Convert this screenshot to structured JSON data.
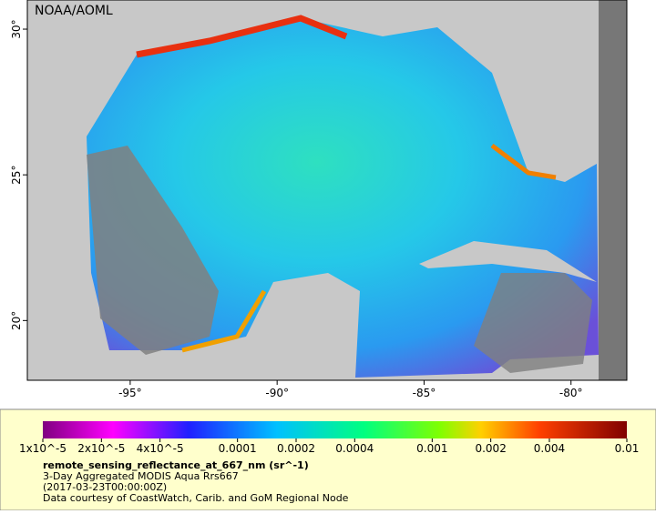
{
  "header": {
    "credit": "NOAA/AOML"
  },
  "map": {
    "xlim": [
      -98.5,
      -78.1
    ],
    "ylim": [
      17.95,
      31
    ],
    "xticks": [
      {
        "value": -95,
        "label": "-95°"
      },
      {
        "value": -90,
        "label": "-90°"
      },
      {
        "value": -85,
        "label": "-85°"
      },
      {
        "value": -80,
        "label": "-80°"
      }
    ],
    "yticks": [
      {
        "value": 20,
        "label": "20°"
      },
      {
        "value": 25,
        "label": "25°"
      },
      {
        "value": 30,
        "label": "30°"
      }
    ]
  },
  "colorbar": {
    "lim": [
      1e-05,
      0.01
    ],
    "log": true,
    "ticks": [
      {
        "value": 1e-05,
        "label": "1x10^-5"
      },
      {
        "value": 2e-05,
        "label": "2x10^-5"
      },
      {
        "value": 4e-05,
        "label": "4x10^-5"
      },
      {
        "value": 0.0001,
        "label": "0.0001"
      },
      {
        "value": 0.0002,
        "label": "0.0002"
      },
      {
        "value": 0.0004,
        "label": "0.0004"
      },
      {
        "value": 0.001,
        "label": "0.001"
      },
      {
        "value": 0.002,
        "label": "0.002"
      },
      {
        "value": 0.004,
        "label": "0.004"
      },
      {
        "value": 0.01,
        "label": "0.01"
      }
    ]
  },
  "caption": {
    "variable": "remote_sensing_reflectance_at_667_nm (sr^-1)",
    "dataset": "3-Day Aggregated MODIS Aqua Rrs667",
    "time": "(2017-03-23T00:00:00Z)",
    "source": "Data courtesy of CoastWatch, Carib. and GoM Regional Node"
  }
}
